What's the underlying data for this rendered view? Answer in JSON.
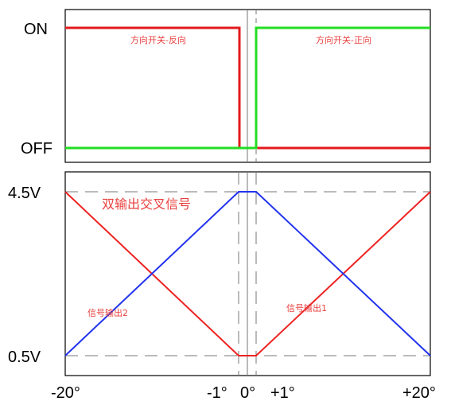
{
  "switch_panel": {
    "on_label": "ON",
    "off_label": "OFF",
    "reverse_label": "方向开关-反向",
    "forward_label": "方向开关-正向",
    "colors": {
      "reverse": "#e31a1c",
      "forward": "#22dd22"
    }
  },
  "signal_panel": {
    "title": "双输出交叉信号",
    "y_high_label": "4.5V",
    "y_low_label": "0.5V",
    "output2_label": "信号输出2",
    "output1_label": "信号输出1",
    "colors": {
      "output2": "#ee2222",
      "output1": "#2233ee"
    }
  },
  "x_axis": {
    "labels": [
      "-20°",
      "-1°",
      "0°",
      "+1°",
      "+20°"
    ]
  }
}
